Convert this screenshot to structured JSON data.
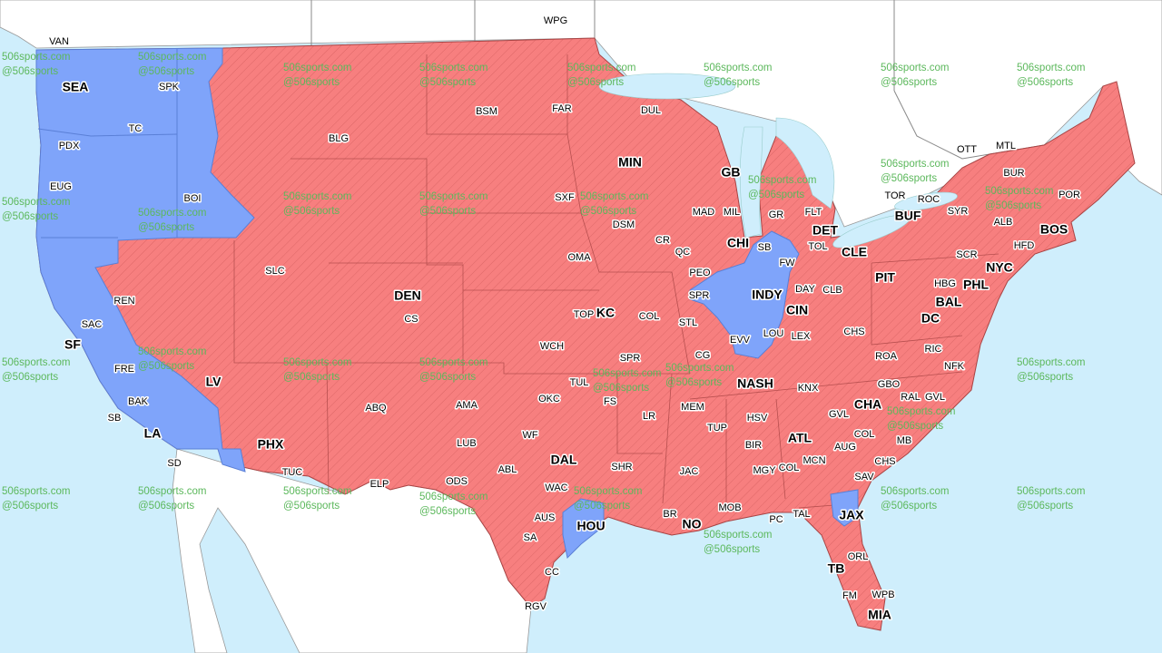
{
  "colors": {
    "ocean": "#cfeefc",
    "land": "#ffffff",
    "region_red": "#f77f7f",
    "region_blue": "#7fa4fa",
    "border": "#8a3b3b",
    "hatch": "#c24a4a"
  },
  "watermark": {
    "line1": "506sports.com",
    "line2": "@506sports"
  },
  "labels": [
    {
      "text": "SEA",
      "major": true
    },
    {
      "text": "SF",
      "major": true
    },
    {
      "text": "LA",
      "major": true
    },
    {
      "text": "LV",
      "major": true
    },
    {
      "text": "PHX",
      "major": true
    },
    {
      "text": "DEN",
      "major": true
    },
    {
      "text": "MIN",
      "major": true
    },
    {
      "text": "GB",
      "major": true
    },
    {
      "text": "CHI",
      "major": true
    },
    {
      "text": "INDY",
      "major": true
    },
    {
      "text": "DET",
      "major": true
    },
    {
      "text": "CLE",
      "major": true
    },
    {
      "text": "CIN",
      "major": true
    },
    {
      "text": "KC",
      "major": true
    },
    {
      "text": "DAL",
      "major": true
    },
    {
      "text": "HOU",
      "major": true
    },
    {
      "text": "NO",
      "major": true
    },
    {
      "text": "NASH",
      "major": true
    },
    {
      "text": "ATL",
      "major": true
    },
    {
      "text": "CHA",
      "major": true
    },
    {
      "text": "JAX",
      "major": true
    },
    {
      "text": "TB",
      "major": true
    },
    {
      "text": "MIA",
      "major": true
    },
    {
      "text": "PIT",
      "major": true
    },
    {
      "text": "BUF",
      "major": true
    },
    {
      "text": "DC",
      "major": true
    },
    {
      "text": "BAL",
      "major": true
    },
    {
      "text": "PHL",
      "major": true
    },
    {
      "text": "NYC",
      "major": true
    },
    {
      "text": "BOS",
      "major": true
    },
    {
      "text": "VAN"
    },
    {
      "text": "WPG"
    },
    {
      "text": "SPK"
    },
    {
      "text": "TC"
    },
    {
      "text": "PDX"
    },
    {
      "text": "EUG"
    },
    {
      "text": "BOI"
    },
    {
      "text": "BLG"
    },
    {
      "text": "BSM"
    },
    {
      "text": "FAR"
    },
    {
      "text": "DUL"
    },
    {
      "text": "SXF"
    },
    {
      "text": "DSM"
    },
    {
      "text": "CR"
    },
    {
      "text": "QC"
    },
    {
      "text": "MAD"
    },
    {
      "text": "MIL"
    },
    {
      "text": "GR"
    },
    {
      "text": "FLT"
    },
    {
      "text": "SB"
    },
    {
      "text": "FW"
    },
    {
      "text": "TOL"
    },
    {
      "text": "PEO"
    },
    {
      "text": "SPR"
    },
    {
      "text": "DAY"
    },
    {
      "text": "CLB"
    },
    {
      "text": "OMA"
    },
    {
      "text": "TOP"
    },
    {
      "text": "COL"
    },
    {
      "text": "STL"
    },
    {
      "text": "EVV"
    },
    {
      "text": "LOU"
    },
    {
      "text": "LEX"
    },
    {
      "text": "CHS"
    },
    {
      "text": "CG"
    },
    {
      "text": "SPR"
    },
    {
      "text": "WCH"
    },
    {
      "text": "REN"
    },
    {
      "text": "SAC"
    },
    {
      "text": "FRE"
    },
    {
      "text": "BAK"
    },
    {
      "text": "SB"
    },
    {
      "text": "SD"
    },
    {
      "text": "SLC"
    },
    {
      "text": "CS"
    },
    {
      "text": "ABQ"
    },
    {
      "text": "TUC"
    },
    {
      "text": "ELP"
    },
    {
      "text": "AMA"
    },
    {
      "text": "LUB"
    },
    {
      "text": "ODS"
    },
    {
      "text": "ABL"
    },
    {
      "text": "WF"
    },
    {
      "text": "OKC"
    },
    {
      "text": "TUL"
    },
    {
      "text": "FS"
    },
    {
      "text": "LR"
    },
    {
      "text": "MEM"
    },
    {
      "text": "TUP"
    },
    {
      "text": "HSV"
    },
    {
      "text": "BIR"
    },
    {
      "text": "MGY"
    },
    {
      "text": "COL"
    },
    {
      "text": "MCN"
    },
    {
      "text": "AUG"
    },
    {
      "text": "GVL"
    },
    {
      "text": "COL"
    },
    {
      "text": "MB"
    },
    {
      "text": "CHS"
    },
    {
      "text": "SAV"
    },
    {
      "text": "KNX"
    },
    {
      "text": "ROA"
    },
    {
      "text": "GBO"
    },
    {
      "text": "RAL"
    },
    {
      "text": "GVL"
    },
    {
      "text": "RIC"
    },
    {
      "text": "NFK"
    },
    {
      "text": "HBG"
    },
    {
      "text": "SCR"
    },
    {
      "text": "ALB"
    },
    {
      "text": "SYR"
    },
    {
      "text": "ROC"
    },
    {
      "text": "BUR"
    },
    {
      "text": "POR"
    },
    {
      "text": "HFD"
    },
    {
      "text": "TOR"
    },
    {
      "text": "OTT"
    },
    {
      "text": "MTL"
    },
    {
      "text": "WAC"
    },
    {
      "text": "AUS"
    },
    {
      "text": "SA"
    },
    {
      "text": "CC"
    },
    {
      "text": "RGV"
    },
    {
      "text": "SHR"
    },
    {
      "text": "JAC"
    },
    {
      "text": "BR"
    },
    {
      "text": "MOB"
    },
    {
      "text": "PC"
    },
    {
      "text": "TAL"
    },
    {
      "text": "ORL"
    },
    {
      "text": "FM"
    },
    {
      "text": "WPB"
    }
  ]
}
